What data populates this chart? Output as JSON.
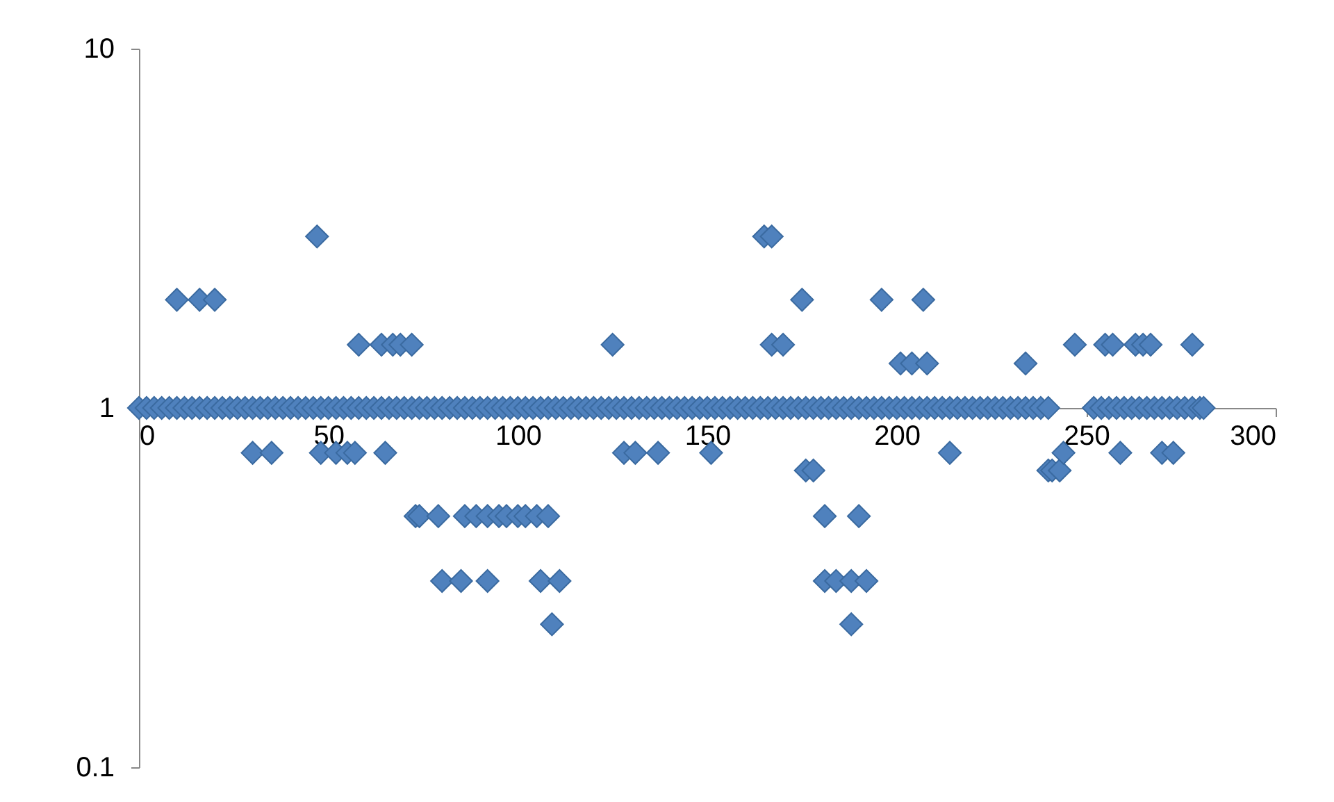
{
  "chart_data": {
    "type": "scatter",
    "log": "y",
    "marker": "diamond",
    "xlim": [
      0,
      300
    ],
    "ylim": [
      0.1,
      10
    ],
    "xticks": [
      0,
      50,
      100,
      150,
      200,
      250,
      300
    ],
    "yticks": [
      0.1,
      1,
      10
    ],
    "grid": false,
    "series": [
      {
        "color": "#4f81bd",
        "x": [
          0,
          2,
          4,
          6,
          8,
          10,
          12,
          14,
          16,
          18,
          20,
          22,
          24,
          26,
          28,
          30,
          32,
          34,
          36,
          38,
          40,
          42,
          44,
          46,
          48,
          50,
          52,
          54,
          56,
          58,
          60,
          62,
          64,
          66,
          68,
          70,
          72,
          74,
          76,
          78,
          80,
          82,
          84,
          86,
          88,
          90,
          92,
          94,
          96,
          98,
          100,
          102,
          104,
          106,
          108,
          110,
          112,
          114,
          116,
          118,
          120,
          122,
          124,
          126,
          128,
          130,
          132,
          134,
          136,
          138,
          140,
          142,
          144,
          146,
          148,
          150,
          152,
          154,
          156,
          158,
          160,
          162,
          164,
          166,
          168,
          170,
          172,
          174,
          176,
          178,
          180,
          182,
          184,
          186,
          188,
          190,
          192,
          194,
          196,
          198,
          200,
          202,
          204,
          206,
          208,
          210,
          212,
          214,
          216,
          218,
          220,
          222,
          224,
          226,
          228,
          230,
          232,
          234,
          236,
          238,
          240,
          252,
          254,
          256,
          258,
          260,
          262,
          264,
          266,
          268,
          270,
          272,
          274,
          276,
          278,
          280,
          281,
          10,
          16,
          20,
          47,
          30,
          35,
          48,
          52,
          55,
          57,
          65,
          58,
          64,
          67,
          69,
          72,
          73,
          74,
          79,
          86,
          89,
          92,
          95,
          97,
          100,
          102,
          105,
          108,
          80,
          85,
          92,
          106,
          111,
          109,
          125,
          128,
          131,
          137,
          151,
          165,
          167,
          175,
          196,
          207,
          167,
          170,
          201,
          204,
          208,
          234,
          176,
          178,
          181,
          190,
          181,
          184,
          188,
          192,
          188,
          214,
          247,
          255,
          257,
          263,
          265,
          267,
          278,
          240,
          241,
          243,
          244,
          259,
          270,
          273
        ],
        "values": [
          1,
          1,
          1,
          1,
          1,
          1,
          1,
          1,
          1,
          1,
          1,
          1,
          1,
          1,
          1,
          1,
          1,
          1,
          1,
          1,
          1,
          1,
          1,
          1,
          1,
          1,
          1,
          1,
          1,
          1,
          1,
          1,
          1,
          1,
          1,
          1,
          1,
          1,
          1,
          1,
          1,
          1,
          1,
          1,
          1,
          1,
          1,
          1,
          1,
          1,
          1,
          1,
          1,
          1,
          1,
          1,
          1,
          1,
          1,
          1,
          1,
          1,
          1,
          1,
          1,
          1,
          1,
          1,
          1,
          1,
          1,
          1,
          1,
          1,
          1,
          1,
          1,
          1,
          1,
          1,
          1,
          1,
          1,
          1,
          1,
          1,
          1,
          1,
          1,
          1,
          1,
          1,
          1,
          1,
          1,
          1,
          1,
          1,
          1,
          1,
          1,
          1,
          1,
          1,
          1,
          1,
          1,
          1,
          1,
          1,
          1,
          1,
          1,
          1,
          1,
          1,
          1,
          1,
          1,
          1,
          1,
          1,
          1,
          1,
          1,
          1,
          1,
          1,
          1,
          1,
          1,
          1,
          1,
          1,
          1,
          1,
          1,
          2,
          2,
          2,
          3,
          0.75,
          0.75,
          0.75,
          0.75,
          0.75,
          0.75,
          0.75,
          1.5,
          1.5,
          1.5,
          1.5,
          1.5,
          0.5,
          0.5,
          0.5,
          0.5,
          0.5,
          0.5,
          0.5,
          0.5,
          0.5,
          0.5,
          0.5,
          0.5,
          0.33,
          0.33,
          0.33,
          0.33,
          0.33,
          0.25,
          1.5,
          0.75,
          0.75,
          0.75,
          0.75,
          3,
          3,
          2,
          2,
          2,
          1.5,
          1.5,
          1.33,
          1.33,
          1.33,
          1.33,
          0.67,
          0.67,
          0.5,
          0.5,
          0.33,
          0.33,
          0.33,
          0.33,
          0.25,
          0.75,
          1.5,
          1.5,
          1.5,
          1.5,
          1.5,
          1.5,
          1.5,
          0.67,
          0.67,
          0.67,
          0.75,
          0.75,
          0.75,
          0.75
        ]
      }
    ]
  }
}
